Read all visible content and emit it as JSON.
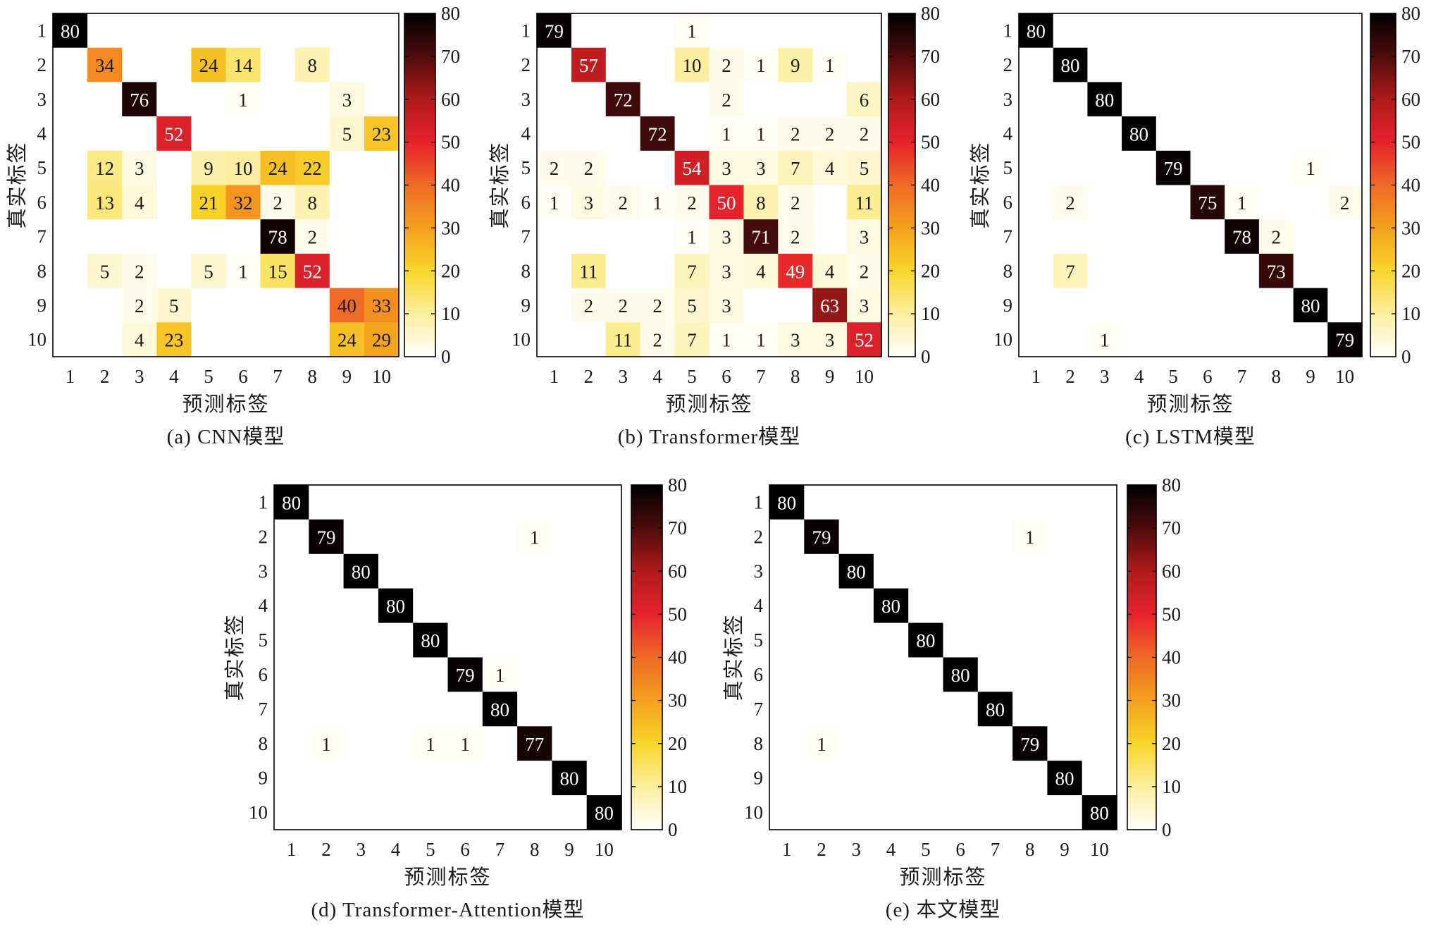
{
  "colormap": [
    {
      "value": 0,
      "color": "#ffffff"
    },
    {
      "value": 5,
      "color": "#fef7cf"
    },
    {
      "value": 10,
      "color": "#fcee9e"
    },
    {
      "value": 20,
      "color": "#f8d62a"
    },
    {
      "value": 30,
      "color": "#f4a01e"
    },
    {
      "value": 40,
      "color": "#ef6a26"
    },
    {
      "value": 50,
      "color": "#e6222c"
    },
    {
      "value": 60,
      "color": "#b01b1b"
    },
    {
      "value": 70,
      "color": "#4e0c0c"
    },
    {
      "value": 80,
      "color": "#000000"
    }
  ],
  "chart_data": [
    {
      "type": "heatmap",
      "title": "(a) CNN模型",
      "xlabel": "预测标签",
      "ylabel": "真实标签",
      "x_categories": [
        "1",
        "2",
        "3",
        "4",
        "5",
        "6",
        "7",
        "8",
        "9",
        "10"
      ],
      "y_categories": [
        "1",
        "2",
        "3",
        "4",
        "5",
        "6",
        "7",
        "8",
        "9",
        "10"
      ],
      "values": [
        [
          80,
          0,
          0,
          0,
          0,
          0,
          0,
          0,
          0,
          0
        ],
        [
          0,
          34,
          0,
          0,
          24,
          14,
          0,
          8,
          0,
          0
        ],
        [
          0,
          0,
          76,
          0,
          0,
          1,
          0,
          0,
          3,
          0
        ],
        [
          0,
          0,
          0,
          52,
          0,
          0,
          0,
          0,
          5,
          23
        ],
        [
          0,
          12,
          3,
          0,
          9,
          10,
          24,
          22,
          0,
          0
        ],
        [
          0,
          13,
          4,
          0,
          21,
          32,
          2,
          8,
          0,
          0
        ],
        [
          0,
          0,
          0,
          0,
          0,
          0,
          78,
          2,
          0,
          0
        ],
        [
          0,
          5,
          2,
          0,
          5,
          1,
          15,
          52,
          0,
          0
        ],
        [
          0,
          0,
          2,
          5,
          0,
          0,
          0,
          0,
          40,
          33
        ],
        [
          0,
          0,
          4,
          23,
          0,
          0,
          0,
          0,
          24,
          29
        ]
      ],
      "colorbar": {
        "min": 0,
        "max": 80,
        "ticks": [
          0,
          10,
          20,
          30,
          40,
          50,
          60,
          70,
          80
        ]
      }
    },
    {
      "type": "heatmap",
      "title": "(b) Transformer模型",
      "xlabel": "预测标签",
      "ylabel": "真实标签",
      "x_categories": [
        "1",
        "2",
        "3",
        "4",
        "5",
        "6",
        "7",
        "8",
        "9",
        "10"
      ],
      "y_categories": [
        "1",
        "2",
        "3",
        "4",
        "5",
        "6",
        "7",
        "8",
        "9",
        "10"
      ],
      "values": [
        [
          79,
          0,
          0,
          0,
          1,
          0,
          0,
          0,
          0,
          0
        ],
        [
          0,
          57,
          0,
          0,
          10,
          2,
          1,
          9,
          1,
          0
        ],
        [
          0,
          0,
          72,
          0,
          0,
          2,
          0,
          0,
          0,
          6
        ],
        [
          0,
          0,
          0,
          72,
          0,
          1,
          1,
          2,
          2,
          2
        ],
        [
          2,
          2,
          0,
          0,
          54,
          3,
          3,
          7,
          4,
          5
        ],
        [
          1,
          3,
          2,
          1,
          2,
          50,
          8,
          2,
          0,
          11
        ],
        [
          0,
          0,
          0,
          0,
          1,
          3,
          71,
          2,
          0,
          3
        ],
        [
          0,
          11,
          0,
          0,
          7,
          3,
          4,
          49,
          4,
          2
        ],
        [
          0,
          2,
          2,
          2,
          5,
          3,
          0,
          0,
          63,
          3
        ],
        [
          0,
          0,
          11,
          2,
          7,
          1,
          1,
          3,
          3,
          52
        ]
      ],
      "colorbar": {
        "min": 0,
        "max": 80,
        "ticks": [
          0,
          10,
          20,
          30,
          40,
          50,
          60,
          70,
          80
        ]
      }
    },
    {
      "type": "heatmap",
      "title": "(c) LSTM模型",
      "xlabel": "预测标签",
      "ylabel": "真实标签",
      "x_categories": [
        "1",
        "2",
        "3",
        "4",
        "5",
        "6",
        "7",
        "8",
        "9",
        "10"
      ],
      "y_categories": [
        "1",
        "2",
        "3",
        "4",
        "5",
        "6",
        "7",
        "8",
        "9",
        "10"
      ],
      "values": [
        [
          80,
          0,
          0,
          0,
          0,
          0,
          0,
          0,
          0,
          0
        ],
        [
          0,
          80,
          0,
          0,
          0,
          0,
          0,
          0,
          0,
          0
        ],
        [
          0,
          0,
          80,
          0,
          0,
          0,
          0,
          0,
          0,
          0
        ],
        [
          0,
          0,
          0,
          80,
          0,
          0,
          0,
          0,
          0,
          0
        ],
        [
          0,
          0,
          0,
          0,
          79,
          0,
          0,
          0,
          1,
          0
        ],
        [
          0,
          2,
          0,
          0,
          0,
          75,
          1,
          0,
          0,
          2
        ],
        [
          0,
          0,
          0,
          0,
          0,
          0,
          78,
          2,
          0,
          0
        ],
        [
          0,
          7,
          0,
          0,
          0,
          0,
          0,
          73,
          0,
          0
        ],
        [
          0,
          0,
          0,
          0,
          0,
          0,
          0,
          0,
          80,
          0
        ],
        [
          0,
          0,
          1,
          0,
          0,
          0,
          0,
          0,
          0,
          79
        ]
      ],
      "colorbar": {
        "min": 0,
        "max": 80,
        "ticks": [
          0,
          10,
          20,
          30,
          40,
          50,
          60,
          70,
          80
        ]
      }
    },
    {
      "type": "heatmap",
      "title": "(d) Transformer-Attention模型",
      "xlabel": "预测标签",
      "ylabel": "真实标签",
      "x_categories": [
        "1",
        "2",
        "3",
        "4",
        "5",
        "6",
        "7",
        "8",
        "9",
        "10"
      ],
      "y_categories": [
        "1",
        "2",
        "3",
        "4",
        "5",
        "6",
        "7",
        "8",
        "9",
        "10"
      ],
      "values": [
        [
          80,
          0,
          0,
          0,
          0,
          0,
          0,
          0,
          0,
          0
        ],
        [
          0,
          79,
          0,
          0,
          0,
          0,
          0,
          1,
          0,
          0
        ],
        [
          0,
          0,
          80,
          0,
          0,
          0,
          0,
          0,
          0,
          0
        ],
        [
          0,
          0,
          0,
          80,
          0,
          0,
          0,
          0,
          0,
          0
        ],
        [
          0,
          0,
          0,
          0,
          80,
          0,
          0,
          0,
          0,
          0
        ],
        [
          0,
          0,
          0,
          0,
          0,
          79,
          1,
          0,
          0,
          0
        ],
        [
          0,
          0,
          0,
          0,
          0,
          0,
          80,
          0,
          0,
          0
        ],
        [
          0,
          1,
          0,
          0,
          1,
          1,
          0,
          77,
          0,
          0
        ],
        [
          0,
          0,
          0,
          0,
          0,
          0,
          0,
          0,
          80,
          0
        ],
        [
          0,
          0,
          0,
          0,
          0,
          0,
          0,
          0,
          0,
          80
        ]
      ],
      "colorbar": {
        "min": 0,
        "max": 80,
        "ticks": [
          0,
          10,
          20,
          30,
          40,
          50,
          60,
          70,
          80
        ]
      }
    },
    {
      "type": "heatmap",
      "title": "(e) 本文模型",
      "xlabel": "预测标签",
      "ylabel": "真实标签",
      "x_categories": [
        "1",
        "2",
        "3",
        "4",
        "5",
        "6",
        "7",
        "8",
        "9",
        "10"
      ],
      "y_categories": [
        "1",
        "2",
        "3",
        "4",
        "5",
        "6",
        "7",
        "8",
        "9",
        "10"
      ],
      "values": [
        [
          80,
          0,
          0,
          0,
          0,
          0,
          0,
          0,
          0,
          0
        ],
        [
          0,
          79,
          0,
          0,
          0,
          0,
          0,
          1,
          0,
          0
        ],
        [
          0,
          0,
          80,
          0,
          0,
          0,
          0,
          0,
          0,
          0
        ],
        [
          0,
          0,
          0,
          80,
          0,
          0,
          0,
          0,
          0,
          0
        ],
        [
          0,
          0,
          0,
          0,
          80,
          0,
          0,
          0,
          0,
          0
        ],
        [
          0,
          0,
          0,
          0,
          0,
          80,
          0,
          0,
          0,
          0
        ],
        [
          0,
          0,
          0,
          0,
          0,
          0,
          80,
          0,
          0,
          0
        ],
        [
          0,
          1,
          0,
          0,
          0,
          0,
          0,
          79,
          0,
          0
        ],
        [
          0,
          0,
          0,
          0,
          0,
          0,
          0,
          0,
          80,
          0
        ],
        [
          0,
          0,
          0,
          0,
          0,
          0,
          0,
          0,
          0,
          80
        ]
      ],
      "colorbar": {
        "min": 0,
        "max": 80,
        "ticks": [
          0,
          10,
          20,
          30,
          40,
          50,
          60,
          70,
          80
        ]
      }
    }
  ]
}
